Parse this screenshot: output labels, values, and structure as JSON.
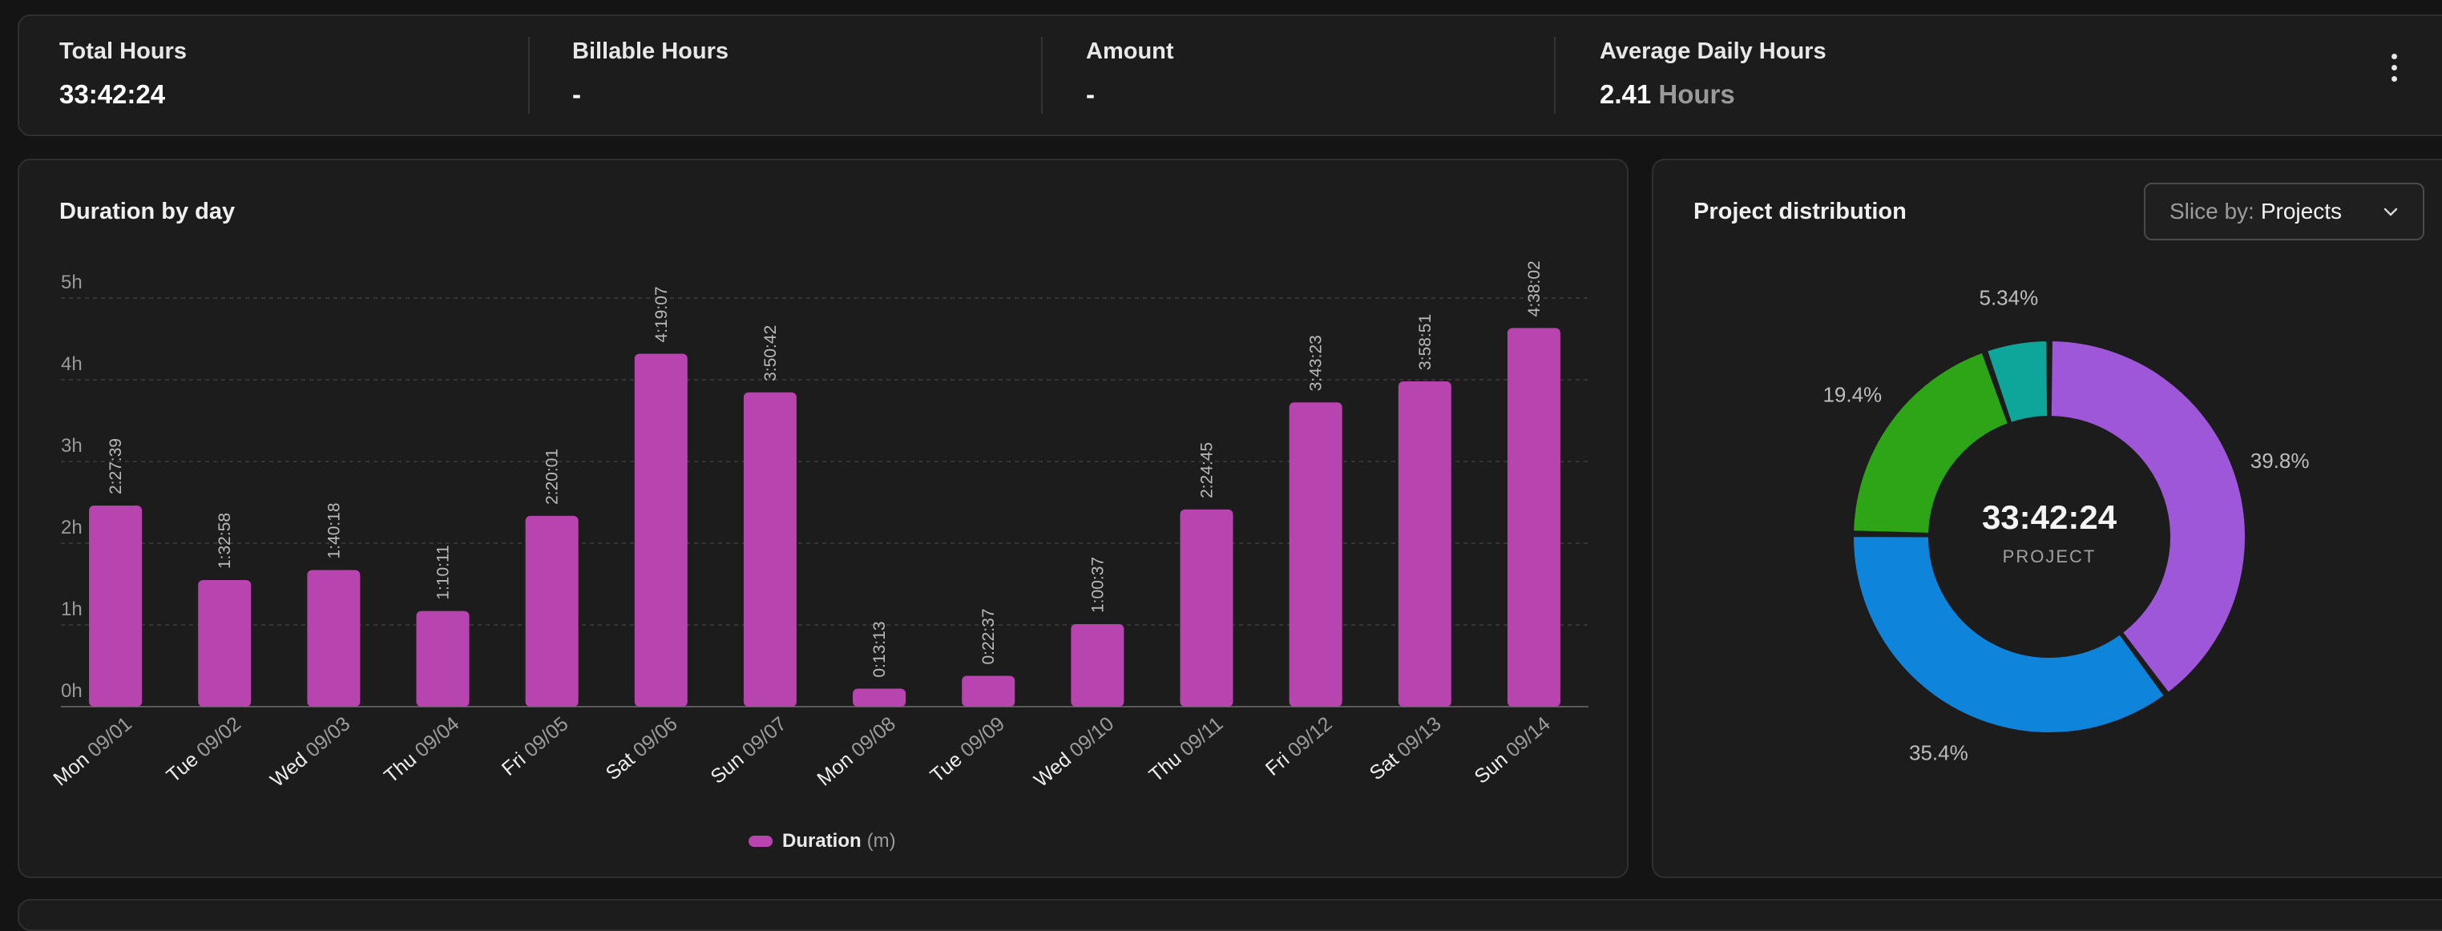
{
  "summary": {
    "total_hours": {
      "label": "Total Hours",
      "value": "33:42:24"
    },
    "billable_hours": {
      "label": "Billable Hours",
      "value": "-"
    },
    "amount": {
      "label": "Amount",
      "value": "-"
    },
    "average_daily": {
      "label": "Average Daily Hours",
      "value": "2.41",
      "unit": "Hours"
    },
    "menu_icon": "kebab-menu-icon"
  },
  "duration_panel": {
    "title": "Duration by day",
    "legend": {
      "label": "Duration",
      "unit": "(m)"
    }
  },
  "distribution_panel": {
    "title": "Project distribution",
    "slice_prefix": "Slice by:",
    "slice_value": "Projects",
    "center_value": "33:42:24",
    "center_label": "PROJECT"
  },
  "colors": {
    "bar": "#b844b0",
    "purple": "#9e57d9",
    "blue": "#0f84db",
    "green": "#2ea516",
    "teal": "#0ea69a"
  },
  "chart_data": [
    {
      "type": "bar",
      "title": "Duration by day",
      "xlabel": "",
      "ylabel": "",
      "ylim": [
        0,
        5
      ],
      "yticks": [
        "0h",
        "1h",
        "2h",
        "3h",
        "4h",
        "5h"
      ],
      "grid": true,
      "legend_position": "bottom",
      "categories": [
        {
          "day": "Mon",
          "date": "09/01"
        },
        {
          "day": "Tue",
          "date": "09/02"
        },
        {
          "day": "Wed",
          "date": "09/03"
        },
        {
          "day": "Thu",
          "date": "09/04"
        },
        {
          "day": "Fri",
          "date": "09/05"
        },
        {
          "day": "Sat",
          "date": "09/06"
        },
        {
          "day": "Sun",
          "date": "09/07"
        },
        {
          "day": "Mon",
          "date": "09/08"
        },
        {
          "day": "Tue",
          "date": "09/09"
        },
        {
          "day": "Wed",
          "date": "09/10"
        },
        {
          "day": "Thu",
          "date": "09/11"
        },
        {
          "day": "Fri",
          "date": "09/12"
        },
        {
          "day": "Sat",
          "date": "09/13"
        },
        {
          "day": "Sun",
          "date": "09/14"
        }
      ],
      "series": [
        {
          "name": "Duration",
          "values": [
            2.461,
            1.549,
            1.672,
            1.17,
            2.334,
            4.319,
            3.845,
            0.22,
            0.377,
            1.01,
            2.413,
            3.723,
            3.981,
            4.634
          ],
          "labels": [
            "2:27:39",
            "1:32:58",
            "1:40:18",
            "1:10:11",
            "2:20:01",
            "4:19:07",
            "3:50:42",
            "0:13:13",
            "0:22:37",
            "1:00:37",
            "2:24:45",
            "3:43:23",
            "3:58:51",
            "4:38:02"
          ]
        }
      ]
    },
    {
      "type": "pie",
      "title": "Project distribution",
      "slices": [
        {
          "label": "39.8%",
          "value": 39.8,
          "color": "#9e57d9"
        },
        {
          "label": "35.4%",
          "value": 35.4,
          "color": "#0f84db"
        },
        {
          "label": "19.4%",
          "value": 19.4,
          "color": "#2ea516"
        },
        {
          "label": "5.34%",
          "value": 5.34,
          "color": "#0ea69a"
        }
      ]
    }
  ]
}
